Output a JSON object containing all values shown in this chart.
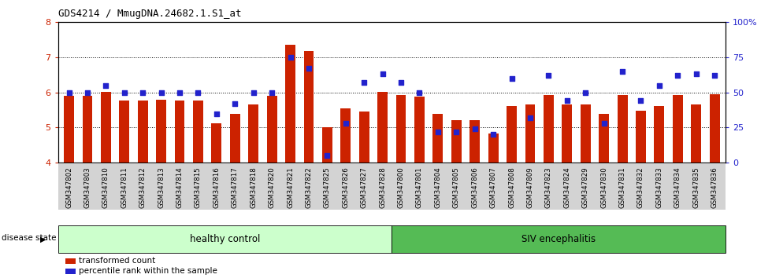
{
  "title": "GDS4214 / MmugDNA.24682.1.S1_at",
  "samples": [
    "GSM347802",
    "GSM347803",
    "GSM347810",
    "GSM347811",
    "GSM347812",
    "GSM347813",
    "GSM347814",
    "GSM347815",
    "GSM347816",
    "GSM347817",
    "GSM347818",
    "GSM347820",
    "GSM347821",
    "GSM347822",
    "GSM347825",
    "GSM347826",
    "GSM347827",
    "GSM347828",
    "GSM347800",
    "GSM347801",
    "GSM347804",
    "GSM347805",
    "GSM347806",
    "GSM347807",
    "GSM347808",
    "GSM347809",
    "GSM347823",
    "GSM347824",
    "GSM347829",
    "GSM347830",
    "GSM347831",
    "GSM347832",
    "GSM347833",
    "GSM347834",
    "GSM347835",
    "GSM347836"
  ],
  "bar_values": [
    5.9,
    5.9,
    6.02,
    5.78,
    5.78,
    5.8,
    5.78,
    5.78,
    5.12,
    5.38,
    5.65,
    5.9,
    7.35,
    7.18,
    5.02,
    5.55,
    5.45,
    6.02,
    5.92,
    5.88,
    5.38,
    5.22,
    5.22,
    4.82,
    5.62,
    5.65,
    5.92,
    5.65,
    5.65,
    5.38,
    5.92,
    5.48,
    5.62,
    5.92,
    5.65,
    5.95
  ],
  "dot_values_pct": [
    50,
    50,
    55,
    50,
    50,
    50,
    50,
    50,
    35,
    42,
    50,
    50,
    75,
    67,
    5,
    28,
    57,
    63,
    57,
    50,
    22,
    22,
    24,
    20,
    60,
    32,
    62,
    44,
    50,
    28,
    65,
    44,
    55,
    62,
    63,
    62
  ],
  "n_healthy": 18,
  "n_siv": 18,
  "ylim_left": [
    4,
    8
  ],
  "ylim_right": [
    0,
    100
  ],
  "yticks_left": [
    4,
    5,
    6,
    7,
    8
  ],
  "yticks_right": [
    0,
    25,
    50,
    75,
    100
  ],
  "bar_color": "#cc2200",
  "dot_color": "#2222cc",
  "healthy_label": "healthy control",
  "siv_label": "SIV encephalitis",
  "healthy_bg": "#ccffcc",
  "siv_bg": "#55bb55",
  "disease_state_label": "disease state",
  "legend_bar_label": "transformed count",
  "legend_dot_label": "percentile rank within the sample",
  "bar_bottom": 4.0
}
